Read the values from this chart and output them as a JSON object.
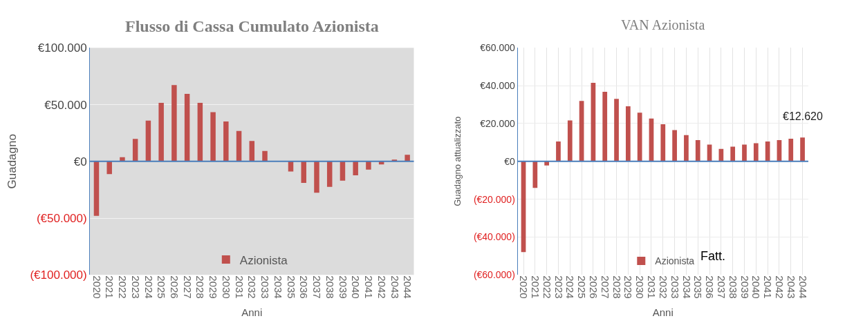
{
  "chart_data": [
    {
      "type": "bar",
      "title": "Flusso di Cassa Cumulato Azionista",
      "xlabel": "Anni",
      "ylabel": "Guadagno",
      "categories": [
        "2020",
        "2021",
        "2022",
        "2023",
        "2024",
        "2025",
        "2026",
        "2027",
        "2028",
        "2029",
        "2030",
        "2031",
        "2032",
        "2033",
        "2034",
        "2035",
        "2036",
        "2037",
        "2038",
        "2039",
        "2040",
        "2041",
        "2042",
        "2043",
        "2044"
      ],
      "series": [
        {
          "name": "Azionista",
          "color": "#c0504d",
          "values": [
            -48000,
            -11200,
            3700,
            19800,
            35900,
            51500,
            67200,
            59400,
            51500,
            43300,
            35200,
            26800,
            18000,
            9100,
            0,
            -8900,
            -19000,
            -27600,
            -22500,
            -17000,
            -12300,
            -7300,
            -2700,
            1500,
            5800
          ]
        }
      ],
      "ylim": [
        -100000,
        100000
      ],
      "yticks": [
        {
          "value": 100000,
          "label": "€100.000"
        },
        {
          "value": 50000,
          "label": "€50.000"
        },
        {
          "value": 0,
          "label": "€0"
        },
        {
          "value": -50000,
          "label": "(€50.000)"
        },
        {
          "value": -100000,
          "label": "(€100.000)"
        }
      ],
      "ref_lines": [
        {
          "axis": "y",
          "value": 0,
          "color": "#4a7ebb"
        }
      ],
      "grid": "y",
      "legend": "bottom"
    },
    {
      "type": "bar",
      "title": "VAN Azionista",
      "xlabel": "Anni",
      "ylabel": "Guadagno attualizzato",
      "categories": [
        "2020",
        "2021",
        "2022",
        "2023",
        "2024",
        "2025",
        "2026",
        "2027",
        "2028",
        "2029",
        "2030",
        "2031",
        "2032",
        "2033",
        "2034",
        "2035",
        "2036",
        "2037",
        "2038",
        "2039",
        "2040",
        "2041",
        "2042",
        "2043",
        "2044"
      ],
      "series": [
        {
          "name": "Azionista",
          "color": "#c0504d",
          "values": [
            -48000,
            -14000,
            -2200,
            10500,
            21600,
            31900,
            41500,
            36800,
            33000,
            29100,
            25700,
            22600,
            19600,
            16500,
            13900,
            11200,
            8900,
            6600,
            7800,
            8900,
            9600,
            10500,
            11200,
            12000,
            12620
          ],
          "value_labels": [
            null,
            null,
            null,
            null,
            null,
            null,
            null,
            null,
            null,
            null,
            null,
            null,
            null,
            null,
            null,
            null,
            null,
            null,
            null,
            null,
            null,
            null,
            null,
            null,
            "€12.620"
          ]
        }
      ],
      "ylim": [
        -60000,
        60000
      ],
      "yticks": [
        {
          "value": 60000,
          "label": "€60.000"
        },
        {
          "value": 40000,
          "label": "€40.000"
        },
        {
          "value": 20000,
          "label": "€20.000"
        },
        {
          "value": 0,
          "label": "€0"
        },
        {
          "value": -20000,
          "label": "(€20.000)"
        },
        {
          "value": -40000,
          "label": "(€40.000)"
        },
        {
          "value": -60000,
          "label": "(€60.000)"
        }
      ],
      "annotations": [
        "Fatt."
      ],
      "ref_lines": [
        {
          "axis": "y",
          "value": 0,
          "color": "#4a7ebb"
        }
      ],
      "grid": true,
      "legend": "bottom"
    }
  ]
}
